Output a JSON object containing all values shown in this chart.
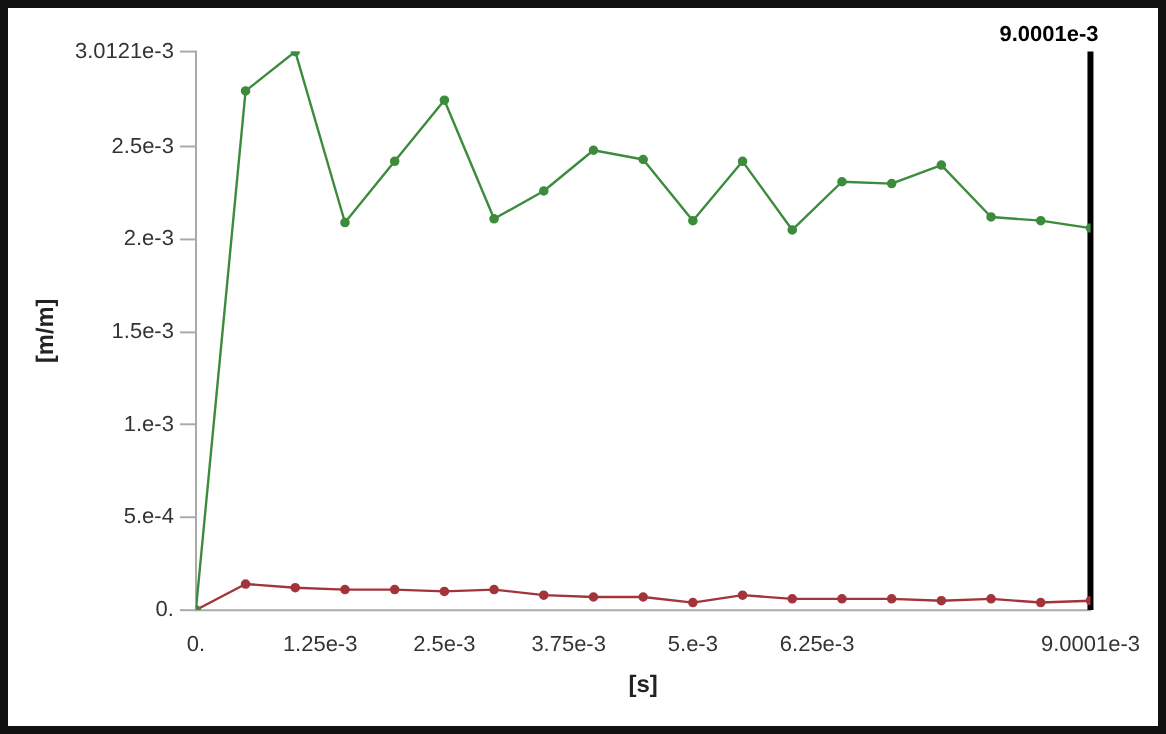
{
  "chart_data": {
    "type": "line",
    "xlabel": "[s]",
    "ylabel": "[m/m]",
    "x": [
      0,
      0.0005,
      0.001,
      0.0015,
      0.002,
      0.0025,
      0.003,
      0.0035,
      0.004,
      0.0045,
      0.005,
      0.0055,
      0.006,
      0.0065,
      0.007,
      0.0075,
      0.008,
      0.0085,
      0.0090001
    ],
    "series": [
      {
        "color": "#3d8b3d",
        "values": [
          0,
          0.0028,
          0.0030121,
          0.00209,
          0.00242,
          0.00275,
          0.00211,
          0.00226,
          0.00248,
          0.00243,
          0.0021,
          0.00242,
          0.00205,
          0.00231,
          0.0023,
          0.0024,
          0.00212,
          0.0021,
          0.00206
        ]
      },
      {
        "color": "#a3343c",
        "values": [
          0,
          0.00014,
          0.00012,
          0.00011,
          0.00011,
          0.0001,
          0.00011,
          8e-05,
          7e-05,
          7e-05,
          4e-05,
          8e-05,
          6e-05,
          6e-05,
          6e-05,
          5e-05,
          6e-05,
          4e-05,
          5e-05
        ]
      }
    ],
    "xlim": [
      0,
      0.0090001
    ],
    "xticks": [
      {
        "value": 0,
        "label": "0."
      },
      {
        "value": 0.00125,
        "label": "1.25e-3"
      },
      {
        "value": 0.0025,
        "label": "2.5e-3"
      },
      {
        "value": 0.00375,
        "label": "3.75e-3"
      },
      {
        "value": 0.005,
        "label": "5.e-3"
      },
      {
        "value": 0.00625,
        "label": "6.25e-3"
      },
      {
        "value": 0.0090001,
        "label": "9.0001e-3"
      }
    ],
    "ylim": [
      0,
      0.0030121
    ],
    "yticks": [
      {
        "value": 0,
        "label": "0."
      },
      {
        "value": 0.0005,
        "label": "5.e-4"
      },
      {
        "value": 0.001,
        "label": "1.e-3"
      },
      {
        "value": 0.0015,
        "label": "1.5e-3"
      },
      {
        "value": 0.002,
        "label": "2.e-3"
      },
      {
        "value": 0.0025,
        "label": "2.5e-3"
      },
      {
        "value": 0.0030121,
        "label": "3.0121e-3"
      }
    ],
    "ref_lines": [
      {
        "axis": "x",
        "value": 0.0090001,
        "label": "9.0001e-3",
        "color": "#000000"
      }
    ],
    "grid": false,
    "legend": false,
    "marker": "circle",
    "line_style": "solid"
  }
}
